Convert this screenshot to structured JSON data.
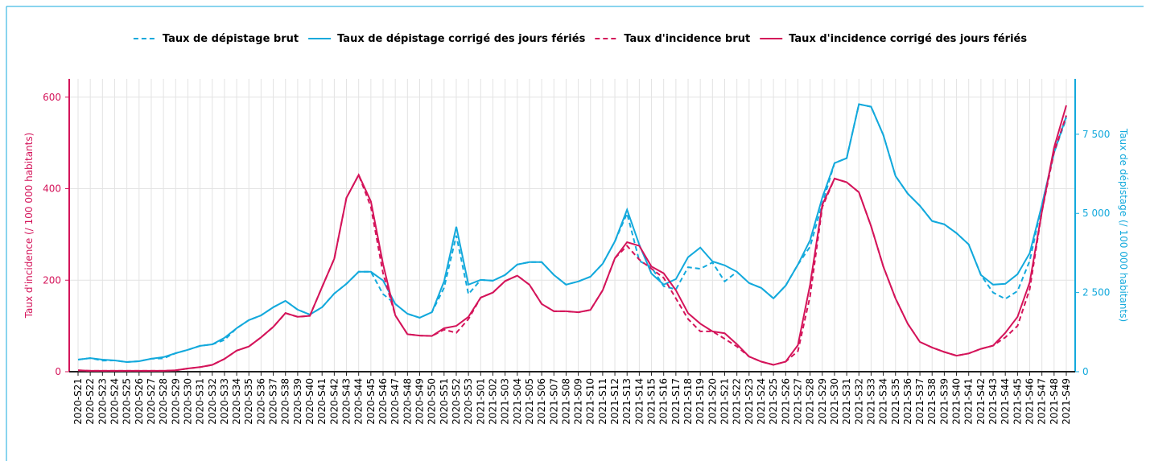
{
  "chart_data": {
    "type": "line",
    "y_label": "Taux d'incidence (/ 100 000 habitants)",
    "y2_label": "Taux de dépistage (/ 100 000 habitants)",
    "categories": [
      "2020-S21",
      "2020-S22",
      "2020-S23",
      "2020-S24",
      "2020-S25",
      "2020-S26",
      "2020-S27",
      "2020-S28",
      "2020-S29",
      "2020-S30",
      "2020-S31",
      "2020-S32",
      "2020-S33",
      "2020-S34",
      "2020-S35",
      "2020-S36",
      "2020-S37",
      "2020-S38",
      "2020-S39",
      "2020-S40",
      "2020-S41",
      "2020-S42",
      "2020-S43",
      "2020-S44",
      "2020-S45",
      "2020-S46",
      "2020-S47",
      "2020-S48",
      "2020-S49",
      "2020-S50",
      "2020-S51",
      "2020-S52",
      "2020-S53",
      "2021-S01",
      "2021-S02",
      "2021-S03",
      "2021-S04",
      "2021-S05",
      "2021-S06",
      "2021-S07",
      "2021-S08",
      "2021-S09",
      "2021-S10",
      "2021-S11",
      "2021-S12",
      "2021-S13",
      "2021-S14",
      "2021-S15",
      "2021-S16",
      "2021-S17",
      "2021-S18",
      "2021-S19",
      "2021-S20",
      "2021-S21",
      "2021-S22",
      "2021-S23",
      "2021-S24",
      "2021-S25",
      "2021-S26",
      "2021-S27",
      "2021-S28",
      "2021-S29",
      "2021-S30",
      "2021-S31",
      "2021-S32",
      "2021-S33",
      "2021-S34",
      "2021-S35",
      "2021-S36",
      "2021-S37",
      "2021-S38",
      "2021-S39",
      "2021-S40",
      "2021-S41",
      "2021-S42",
      "2021-S43",
      "2021-S44",
      "2021-S45",
      "2021-S46",
      "2021-S47",
      "2021-S48",
      "2021-S49"
    ],
    "series": [
      {
        "name": "Taux de dépistage brut",
        "color": "#13a9dc",
        "dash": "dashed",
        "axis": "y2",
        "values": [
          380,
          430,
          350,
          355,
          305,
          330,
          410,
          420,
          585,
          690,
          815,
          865,
          1000,
          1375,
          1630,
          1780,
          2035,
          2240,
          1960,
          1805,
          2035,
          2470,
          2775,
          3155,
          3155,
          2450,
          2140,
          1830,
          1705,
          1880,
          2650,
          4300,
          2450,
          2900,
          2875,
          3055,
          3385,
          3460,
          3460,
          3055,
          2750,
          2850,
          3000,
          3410,
          4120,
          5000,
          3500,
          3300,
          2700,
          2600,
          3300,
          3250,
          3450,
          2850,
          3150,
          2800,
          2645,
          2315,
          2720,
          3385,
          3950,
          5300,
          6590,
          6745,
          8450,
          8370,
          7480,
          6180,
          5625,
          5240,
          4760,
          4655,
          4375,
          4020,
          3055,
          2500,
          2300,
          2550,
          3500,
          5265,
          6920,
          8000
        ]
      },
      {
        "name": "Taux de dépistage corrigé des jours fériés",
        "color": "#13a9dc",
        "dash": "solid",
        "axis": "y2",
        "values": [
          380,
          430,
          380,
          355,
          305,
          330,
          410,
          460,
          585,
          690,
          815,
          865,
          1070,
          1375,
          1630,
          1780,
          2035,
          2240,
          1960,
          1805,
          2035,
          2470,
          2775,
          3155,
          3155,
          2880,
          2140,
          1830,
          1705,
          1880,
          2850,
          4580,
          2750,
          2900,
          2875,
          3055,
          3385,
          3460,
          3460,
          3055,
          2750,
          2850,
          3000,
          3410,
          4120,
          5115,
          4010,
          3100,
          2750,
          2925,
          3615,
          3920,
          3485,
          3360,
          3155,
          2800,
          2645,
          2315,
          2720,
          3385,
          4150,
          5500,
          6590,
          6745,
          8450,
          8370,
          7480,
          6180,
          5625,
          5240,
          4760,
          4655,
          4375,
          4020,
          3055,
          2750,
          2775,
          3080,
          3740,
          5265,
          6920,
          8065
        ]
      },
      {
        "name": "Taux d'incidence brut",
        "color": "#d4145a",
        "dash": "dashed",
        "axis": "y",
        "values": [
          3,
          2,
          2,
          2,
          2,
          2,
          2,
          2,
          3,
          7,
          10,
          15,
          28,
          46,
          55,
          75,
          98,
          128,
          120,
          122,
          185,
          247,
          380,
          430,
          360,
          215,
          123,
          82,
          79,
          78,
          92,
          85,
          115,
          162,
          173,
          198,
          210,
          190,
          148,
          132,
          132,
          130,
          135,
          178,
          248,
          275,
          245,
          225,
          205,
          160,
          115,
          88,
          88,
          72,
          55,
          33,
          22,
          15,
          22,
          45,
          165,
          360,
          422,
          414,
          392,
          318,
          230,
          160,
          105,
          65,
          53,
          43,
          35,
          40,
          50,
          57,
          75,
          100,
          180,
          350,
          480,
          560
        ]
      },
      {
        "name": "Taux d'incidence corrigé des jours fériés",
        "color": "#d4145a",
        "dash": "solid",
        "axis": "y",
        "values": [
          3,
          2,
          2,
          2,
          2,
          2,
          2,
          2,
          3,
          7,
          10,
          15,
          28,
          46,
          55,
          75,
          98,
          128,
          120,
          122,
          185,
          247,
          380,
          430,
          372,
          235,
          123,
          82,
          79,
          78,
          95,
          100,
          120,
          162,
          173,
          198,
          210,
          190,
          148,
          132,
          132,
          130,
          135,
          178,
          248,
          283,
          275,
          230,
          215,
          178,
          128,
          105,
          88,
          84,
          60,
          33,
          22,
          15,
          22,
          58,
          190,
          365,
          422,
          414,
          392,
          318,
          230,
          160,
          105,
          65,
          53,
          43,
          35,
          40,
          50,
          57,
          85,
          120,
          195,
          350,
          490,
          582
        ]
      }
    ],
    "ylim": [
      0,
      640
    ],
    "yticks": [
      0,
      200,
      400,
      600
    ],
    "y2lim": [
      0,
      9250
    ],
    "y2ticks": [
      0,
      {
        "value": 2500,
        "label": "2 500"
      },
      {
        "value": 5000,
        "label": "5 000"
      },
      {
        "value": 7500,
        "label": "7 500"
      }
    ],
    "grid": true,
    "legend": "top"
  }
}
